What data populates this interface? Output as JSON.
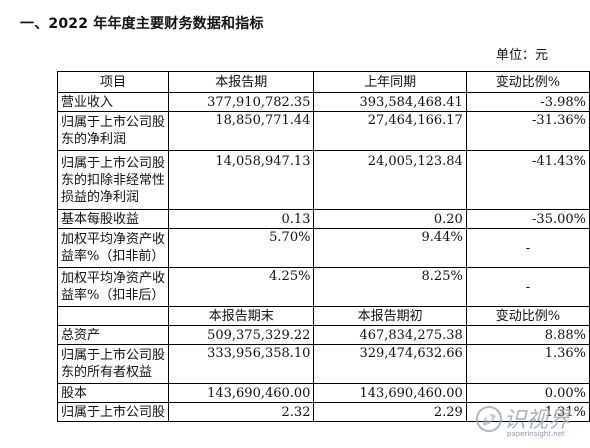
{
  "section_title": "一、2022 年年度主要财务数据和指标",
  "unit_label": "单位：元",
  "table": {
    "header_1": {
      "label": "项目",
      "current": "本报告期",
      "previous": "上年同期",
      "change": "变动比例%"
    },
    "rows_1": [
      {
        "label_lines": [
          "营业收入"
        ],
        "current": "377,910,782.35",
        "previous": "393,584,468.41",
        "change": "-3.98%"
      },
      {
        "label_lines": [
          "归属于上市公司股",
          "东的净利润"
        ],
        "current": "18,850,771.44",
        "previous": "27,464,166.17",
        "change": "-31.36%"
      },
      {
        "label_lines": [
          "归属于上市公司股",
          "东的扣除非经常性",
          "损益的净利润"
        ],
        "current": "14,058,947.13",
        "previous": "24,005,123.84",
        "change": "-41.43%"
      },
      {
        "label_lines": [
          "基本每股收益"
        ],
        "current": "0.13",
        "previous": "0.20",
        "change": "-35.00%"
      },
      {
        "label_lines": [
          "加权平均净资产收",
          "益率%（扣非前）"
        ],
        "current": "5.70%",
        "previous": "9.44%",
        "change": "-"
      },
      {
        "label_lines": [
          "加权平均净资产收",
          "益率%（扣非后）"
        ],
        "current": "4.25%",
        "previous": "8.25%",
        "change": "-"
      }
    ],
    "header_2": {
      "label": "",
      "current": "本报告期末",
      "previous": "本报告期初",
      "change": "变动比例%"
    },
    "rows_2": [
      {
        "label_lines": [
          "总资产"
        ],
        "current": "509,375,329.22",
        "previous": "467,834,275.38",
        "change": "8.88%"
      },
      {
        "label_lines": [
          "归属于上市公司股",
          "东的所有者权益"
        ],
        "current": "333,956,358.10",
        "previous": "329,474,632.66",
        "change": "1.36%"
      },
      {
        "label_lines": [
          "股本"
        ],
        "current": "143,690,460.00",
        "previous": "143,690,460.00",
        "change": "0.00%"
      },
      {
        "label_lines": [
          "归属于上市公司股"
        ],
        "current": "2.32",
        "previous": "2.29",
        "change": "1.31%"
      }
    ]
  },
  "watermark": {
    "brand": "识视界",
    "url": "paperinsight.net"
  }
}
